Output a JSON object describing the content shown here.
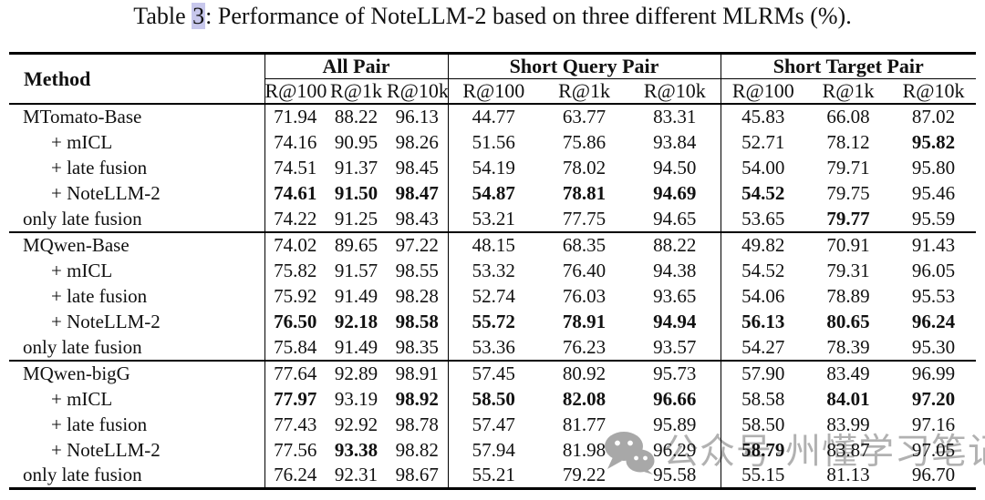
{
  "title": {
    "prefix": "Table ",
    "ref": "3",
    "suffix": ": Performance of NoteLLM-2 based on three different MLRMs (%)."
  },
  "colors": {
    "ref_highlight": "#c7c7ec",
    "watermark_gray": "#9a9a9a"
  },
  "table": {
    "method_header": "Method",
    "groups_header": [
      "All Pair",
      "Short Query Pair",
      "Short Target Pair"
    ],
    "metric_headers": [
      "R@100",
      "R@1k",
      "R@10k"
    ],
    "groups": [
      {
        "rows": [
          {
            "method": "MTomato-Base",
            "indent": false,
            "values": [
              "71.94",
              "88.22",
              "96.13",
              "44.77",
              "63.77",
              "83.31",
              "45.83",
              "66.08",
              "87.02"
            ],
            "bold": []
          },
          {
            "method": "+ mICL",
            "indent": true,
            "values": [
              "74.16",
              "90.95",
              "98.26",
              "51.56",
              "75.86",
              "93.84",
              "52.71",
              "78.12",
              "95.82"
            ],
            "bold": [
              8
            ]
          },
          {
            "method": "+ late fusion",
            "indent": true,
            "values": [
              "74.51",
              "91.37",
              "98.45",
              "54.19",
              "78.02",
              "94.50",
              "54.00",
              "79.71",
              "95.80"
            ],
            "bold": []
          },
          {
            "method": "+ NoteLLM-2",
            "indent": true,
            "values": [
              "74.61",
              "91.50",
              "98.47",
              "54.87",
              "78.81",
              "94.69",
              "54.52",
              "79.75",
              "95.46"
            ],
            "bold": [
              0,
              1,
              2,
              3,
              4,
              5,
              6
            ]
          },
          {
            "method": "only late fusion",
            "indent": false,
            "values": [
              "74.22",
              "91.25",
              "98.43",
              "53.21",
              "77.75",
              "94.65",
              "53.65",
              "79.77",
              "95.59"
            ],
            "bold": [
              7
            ]
          }
        ]
      },
      {
        "rows": [
          {
            "method": "MQwen-Base",
            "indent": false,
            "values": [
              "74.02",
              "89.65",
              "97.22",
              "48.15",
              "68.35",
              "88.22",
              "49.82",
              "70.91",
              "91.43"
            ],
            "bold": []
          },
          {
            "method": "+ mICL",
            "indent": true,
            "values": [
              "75.82",
              "91.57",
              "98.55",
              "53.32",
              "76.40",
              "94.38",
              "54.52",
              "79.31",
              "96.05"
            ],
            "bold": []
          },
          {
            "method": "+ late fusion",
            "indent": true,
            "values": [
              "75.92",
              "91.49",
              "98.28",
              "52.74",
              "76.03",
              "93.65",
              "54.06",
              "78.89",
              "95.53"
            ],
            "bold": []
          },
          {
            "method": "+ NoteLLM-2",
            "indent": true,
            "values": [
              "76.50",
              "92.18",
              "98.58",
              "55.72",
              "78.91",
              "94.94",
              "56.13",
              "80.65",
              "96.24"
            ],
            "bold": [
              0,
              1,
              2,
              3,
              4,
              5,
              6,
              7,
              8
            ]
          },
          {
            "method": "only late fusion",
            "indent": false,
            "values": [
              "75.84",
              "91.49",
              "98.35",
              "53.36",
              "76.23",
              "93.57",
              "54.27",
              "78.39",
              "95.30"
            ],
            "bold": []
          }
        ]
      },
      {
        "rows": [
          {
            "method": "MQwen-bigG",
            "indent": false,
            "values": [
              "77.64",
              "92.89",
              "98.91",
              "57.45",
              "80.92",
              "95.73",
              "57.90",
              "83.49",
              "96.99"
            ],
            "bold": []
          },
          {
            "method": "+ mICL",
            "indent": true,
            "values": [
              "77.97",
              "93.19",
              "98.92",
              "58.50",
              "82.08",
              "96.66",
              "58.58",
              "84.01",
              "97.20"
            ],
            "bold": [
              0,
              2,
              3,
              4,
              5,
              7,
              8
            ]
          },
          {
            "method": "+ late fusion",
            "indent": true,
            "values": [
              "77.43",
              "92.92",
              "98.78",
              "57.47",
              "81.77",
              "95.89",
              "58.50",
              "83.99",
              "97.16"
            ],
            "bold": []
          },
          {
            "method": "+ NoteLLM-2",
            "indent": true,
            "values": [
              "77.56",
              "93.38",
              "98.82",
              "57.94",
              "81.98",
              "96.29",
              "58.79",
              "83.87",
              "97.05"
            ],
            "bold": [
              1,
              6
            ]
          },
          {
            "method": "only late fusion",
            "indent": false,
            "values": [
              "76.24",
              "92.31",
              "98.67",
              "55.21",
              "79.22",
              "95.58",
              "55.15",
              "81.13",
              "96.70"
            ],
            "bold": []
          }
        ]
      }
    ]
  },
  "watermark": {
    "icon": "wechat-icon",
    "text": "公众号·州懂学习笔记"
  }
}
